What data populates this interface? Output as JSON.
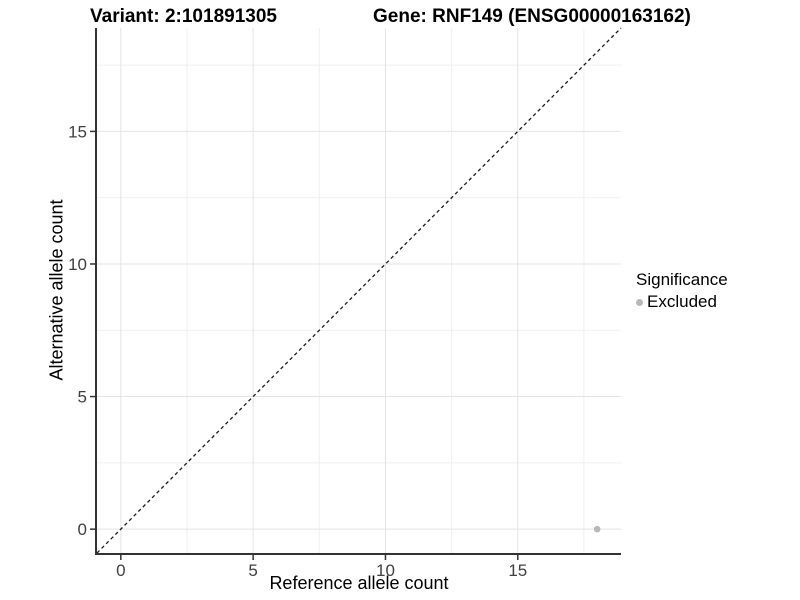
{
  "title": {
    "variant": "Variant: 2:101891305",
    "gene": "Gene: RNF149 (ENSG00000163162)"
  },
  "axes": {
    "x_label": "Reference allele count",
    "y_label": "Alternative allele count"
  },
  "legend": {
    "title": "Significance",
    "items": [
      {
        "label": "Excluded",
        "color": "#b8b8b8"
      }
    ]
  },
  "chart_data": {
    "type": "scatter",
    "title": "Variant: 2:101891305  /  Gene: RNF149 (ENSG00000163162)",
    "xlabel": "Reference allele count",
    "ylabel": "Alternative allele count",
    "xlim": [
      -0.9,
      18.9
    ],
    "ylim": [
      -0.9,
      18.9
    ],
    "x_ticks": [
      0,
      5,
      10,
      15
    ],
    "y_ticks": [
      0,
      5,
      10,
      15
    ],
    "x_minor_ticks": [
      2.5,
      7.5,
      12.5,
      17.5
    ],
    "y_minor_ticks": [
      2.5,
      7.5,
      12.5,
      17.5
    ],
    "series": [
      {
        "name": "Excluded",
        "color": "#b8b8b8",
        "points": [
          {
            "x": 18,
            "y": 0
          }
        ]
      }
    ],
    "reference_line": {
      "kind": "identity",
      "slope": 1,
      "intercept": 0,
      "style": "dashed",
      "color": "#1a1a1a"
    },
    "grid": {
      "major_color": "#e3e3e3",
      "minor_color": "#efefef",
      "shown": true
    },
    "axis_line_color": "#333333",
    "tick_label_color": "#404040",
    "legend_position": "right"
  }
}
